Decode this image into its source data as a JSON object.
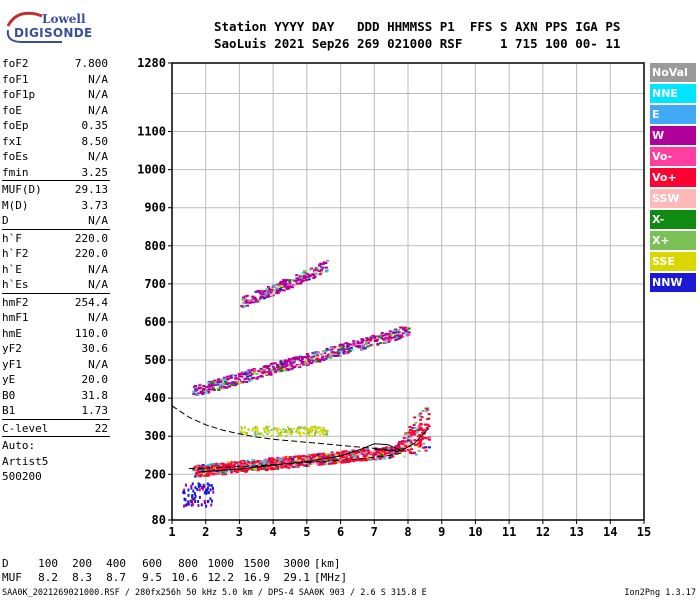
{
  "logo": {
    "line1": "Lowell",
    "line2": "DIGISONDE"
  },
  "header": {
    "line1": "Station YYYY DAY   DDD HHMMSS P1  FFS S AXN PPS IGA PS",
    "line2": "SaoLuis 2021 Sep26 269 021000 RSF     1 715 100 00- 11"
  },
  "params": [
    {
      "k": "foF2",
      "v": "7.800"
    },
    {
      "k": "foF1",
      "v": "N/A"
    },
    {
      "k": "foF1p",
      "v": "N/A"
    },
    {
      "k": "foE",
      "v": "N/A"
    },
    {
      "k": "foEp",
      "v": "0.35"
    },
    {
      "k": "fxI",
      "v": "8.50"
    },
    {
      "k": "foEs",
      "v": "N/A"
    },
    {
      "k": "fmin",
      "v": "3.25"
    },
    {
      "k": "MUF(D)",
      "v": "29.13"
    },
    {
      "k": "M(D)",
      "v": "3.73"
    },
    {
      "k": "D",
      "v": "N/A"
    },
    {
      "k": "h`F",
      "v": "220.0"
    },
    {
      "k": "h`F2",
      "v": "220.0"
    },
    {
      "k": "h`E",
      "v": "N/A"
    },
    {
      "k": "h`Es",
      "v": "N/A"
    },
    {
      "k": "hmF2",
      "v": "254.4"
    },
    {
      "k": "hmF1",
      "v": "N/A"
    },
    {
      "k": "hmE",
      "v": "110.0"
    },
    {
      "k": "yF2",
      "v": "30.6"
    },
    {
      "k": "yF1",
      "v": "N/A"
    },
    {
      "k": "yE",
      "v": "20.0"
    },
    {
      "k": "B0",
      "v": "31.8"
    },
    {
      "k": "B1",
      "v": "1.73"
    },
    {
      "k": "C-level",
      "v": "22"
    }
  ],
  "auto_label": "Auto:",
  "artist_label": "Artist5",
  "artist_version": "500200",
  "legend": [
    {
      "label": "NoVal",
      "color": "#9a9a9a"
    },
    {
      "label": "NNE",
      "color": "#00e5ff"
    },
    {
      "label": "E",
      "color": "#3fa9f5"
    },
    {
      "label": "W",
      "color": "#b0009c"
    },
    {
      "label": "Vo-",
      "color": "#ff3fa0"
    },
    {
      "label": "Vo+",
      "color": "#ff0033"
    },
    {
      "label": "SSW",
      "color": "#ffb8b8"
    },
    {
      "label": "X-",
      "color": "#108a10"
    },
    {
      "label": "X+",
      "color": "#7ac057"
    },
    {
      "label": "SSE",
      "color": "#d8d800"
    },
    {
      "label": "NNW",
      "color": "#1a1ad6"
    }
  ],
  "chart_data": {
    "type": "scatter",
    "title": "",
    "xlabel": "",
    "ylabel": "",
    "xlim": [
      1,
      15
    ],
    "ylim": [
      80,
      1280
    ],
    "xticks": [
      1,
      2,
      3,
      4,
      5,
      6,
      7,
      8,
      9,
      10,
      11,
      12,
      13,
      14,
      15
    ],
    "yticks": [
      80,
      200,
      300,
      400,
      500,
      600,
      700,
      800,
      900,
      1000,
      1100,
      1280
    ],
    "ygrid": [
      200,
      300,
      400,
      500,
      600,
      700,
      800,
      900,
      1000,
      1100,
      1200
    ],
    "grid": true,
    "series": [
      {
        "label_key": "X+",
        "color": "#7ac057",
        "shape": "dashed-curve",
        "points": [
          [
            1.0,
            380
          ],
          [
            1.5,
            350
          ],
          [
            2.0,
            330
          ],
          [
            2.5,
            316
          ],
          [
            3.0,
            306
          ],
          [
            3.5,
            298
          ],
          [
            4.0,
            292
          ],
          [
            4.5,
            288
          ],
          [
            5.0,
            284
          ],
          [
            5.5,
            280
          ],
          [
            6.0,
            276
          ],
          [
            6.5,
            272
          ],
          [
            7.0,
            268
          ],
          [
            7.5,
            264
          ],
          [
            7.8,
            262
          ]
        ]
      },
      {
        "label_key": "NNW",
        "color": "#1a1ad6",
        "shape": "dashed-curve",
        "points": [
          [
            1.5,
            215
          ],
          [
            2.5,
            218
          ],
          [
            3.5,
            222
          ],
          [
            4.5,
            228
          ],
          [
            5.5,
            234
          ],
          [
            6.5,
            240
          ],
          [
            7.5,
            250
          ],
          [
            7.8,
            256
          ],
          [
            7.6,
            262
          ],
          [
            7.0,
            265
          ]
        ]
      },
      {
        "label_key": "Vo+",
        "color": "#ff0033",
        "shape": "solid-curve",
        "points": [
          [
            1.8,
            206
          ],
          [
            3.0,
            214
          ],
          [
            4.0,
            224
          ],
          [
            5.0,
            234
          ],
          [
            6.0,
            248
          ],
          [
            6.6,
            266
          ],
          [
            7.0,
            280
          ],
          [
            7.4,
            278
          ],
          [
            7.8,
            262
          ],
          [
            8.2,
            282
          ],
          [
            8.6,
            320
          ]
        ]
      }
    ],
    "traces": [
      {
        "name": "F2-1hop",
        "x0": 1.6,
        "x1": 8.6,
        "y0": 210,
        "y1": 270,
        "color": "#ff0033"
      },
      {
        "name": "F2-2hop",
        "x0": 1.6,
        "x1": 8.0,
        "y0": 420,
        "y1": 580,
        "color": "#b0009c"
      },
      {
        "name": "F2-3hop",
        "x0": 3.0,
        "x1": 5.6,
        "y0": 650,
        "y1": 750,
        "color": "#b0009c"
      }
    ]
  },
  "muf_table": {
    "d_label": "D",
    "d_values": [
      "100",
      "200",
      "400",
      "600",
      "800",
      "1000",
      "1500",
      "3000"
    ],
    "d_unit": "[km]",
    "m_label": "MUF",
    "m_values": [
      "8.2",
      "8.3",
      "8.7",
      "9.5",
      "10.6",
      "12.2",
      "16.9",
      "29.1"
    ],
    "m_unit": "[MHz]"
  },
  "footer": "SAA0K_2021269021000.RSF / 280fx256h 50 kHz 5.0 km / DPS-4 SAA0K 903 / 2.6 S 315.8 E",
  "version": "Ion2Png 1.3.17"
}
